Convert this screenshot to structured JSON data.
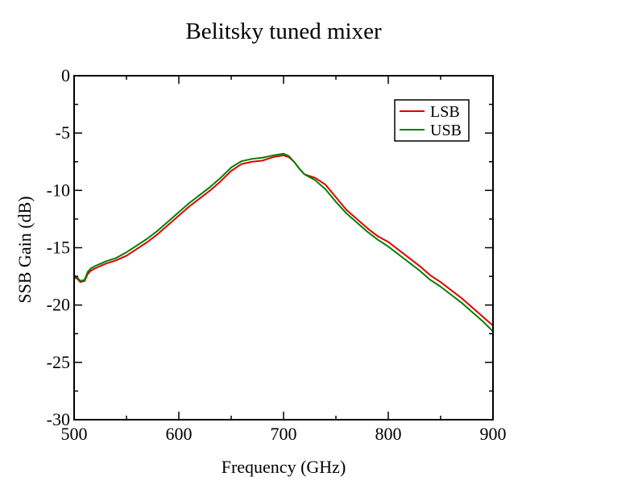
{
  "chart_data": {
    "type": "line",
    "title": "Belitsky tuned mixer",
    "xlabel": "Frequency (GHz)",
    "ylabel": "SSB Gain (dB)",
    "xlim": [
      500,
      900
    ],
    "ylim": [
      -30,
      0
    ],
    "x_major_ticks": [
      500,
      600,
      700,
      800,
      900
    ],
    "x_tick_labels": [
      "500",
      "600",
      "700",
      "800",
      "900"
    ],
    "x_minor_step": 50,
    "y_major_ticks": [
      0,
      -5,
      -10,
      -15,
      -20,
      -25,
      -30
    ],
    "y_tick_labels": [
      "0",
      "-5",
      "-10",
      "-15",
      "-20",
      "-25",
      "-30"
    ],
    "y_minor_step": 2.5,
    "grid": false,
    "legend_position": "top-right",
    "series": [
      {
        "name": "LSB",
        "color": "#e00000",
        "points": [
          [
            500,
            -17.6
          ],
          [
            503,
            -17.7
          ],
          [
            506,
            -18.0
          ],
          [
            510,
            -17.9
          ],
          [
            513,
            -17.3
          ],
          [
            516,
            -17.0
          ],
          [
            520,
            -16.8
          ],
          [
            525,
            -16.6
          ],
          [
            530,
            -16.4
          ],
          [
            540,
            -16.1
          ],
          [
            550,
            -15.7
          ],
          [
            560,
            -15.1
          ],
          [
            570,
            -14.5
          ],
          [
            580,
            -13.8
          ],
          [
            590,
            -13.0
          ],
          [
            600,
            -12.2
          ],
          [
            610,
            -11.4
          ],
          [
            620,
            -10.7
          ],
          [
            630,
            -10.0
          ],
          [
            640,
            -9.2
          ],
          [
            650,
            -8.3
          ],
          [
            660,
            -7.7
          ],
          [
            670,
            -7.5
          ],
          [
            680,
            -7.4
          ],
          [
            690,
            -7.1
          ],
          [
            700,
            -6.95
          ],
          [
            705,
            -7.1
          ],
          [
            710,
            -7.5
          ],
          [
            715,
            -8.1
          ],
          [
            720,
            -8.6
          ],
          [
            730,
            -8.9
          ],
          [
            740,
            -9.5
          ],
          [
            750,
            -10.6
          ],
          [
            760,
            -11.7
          ],
          [
            770,
            -12.5
          ],
          [
            780,
            -13.3
          ],
          [
            790,
            -14.0
          ],
          [
            800,
            -14.5
          ],
          [
            810,
            -15.2
          ],
          [
            820,
            -15.9
          ],
          [
            830,
            -16.6
          ],
          [
            840,
            -17.4
          ],
          [
            850,
            -18.0
          ],
          [
            860,
            -18.7
          ],
          [
            870,
            -19.4
          ],
          [
            880,
            -20.2
          ],
          [
            890,
            -21.0
          ],
          [
            900,
            -21.8
          ]
        ]
      },
      {
        "name": "USB",
        "color": "#008000",
        "points": [
          [
            500,
            -17.4
          ],
          [
            503,
            -17.6
          ],
          [
            506,
            -17.9
          ],
          [
            510,
            -17.8
          ],
          [
            513,
            -17.1
          ],
          [
            516,
            -16.8
          ],
          [
            520,
            -16.6
          ],
          [
            525,
            -16.4
          ],
          [
            530,
            -16.2
          ],
          [
            540,
            -15.9
          ],
          [
            550,
            -15.4
          ],
          [
            560,
            -14.8
          ],
          [
            570,
            -14.2
          ],
          [
            580,
            -13.5
          ],
          [
            590,
            -12.7
          ],
          [
            600,
            -11.9
          ],
          [
            610,
            -11.1
          ],
          [
            620,
            -10.4
          ],
          [
            630,
            -9.7
          ],
          [
            640,
            -8.9
          ],
          [
            650,
            -8.0
          ],
          [
            660,
            -7.45
          ],
          [
            670,
            -7.25
          ],
          [
            680,
            -7.15
          ],
          [
            690,
            -6.95
          ],
          [
            700,
            -6.8
          ],
          [
            705,
            -7.0
          ],
          [
            710,
            -7.5
          ],
          [
            715,
            -8.1
          ],
          [
            720,
            -8.6
          ],
          [
            730,
            -9.1
          ],
          [
            740,
            -9.9
          ],
          [
            750,
            -11.0
          ],
          [
            760,
            -12.0
          ],
          [
            770,
            -12.8
          ],
          [
            780,
            -13.6
          ],
          [
            790,
            -14.3
          ],
          [
            800,
            -14.9
          ],
          [
            810,
            -15.6
          ],
          [
            820,
            -16.3
          ],
          [
            830,
            -17.0
          ],
          [
            840,
            -17.8
          ],
          [
            850,
            -18.4
          ],
          [
            860,
            -19.1
          ],
          [
            870,
            -19.8
          ],
          [
            880,
            -20.6
          ],
          [
            890,
            -21.4
          ],
          [
            900,
            -22.3
          ]
        ]
      }
    ]
  }
}
